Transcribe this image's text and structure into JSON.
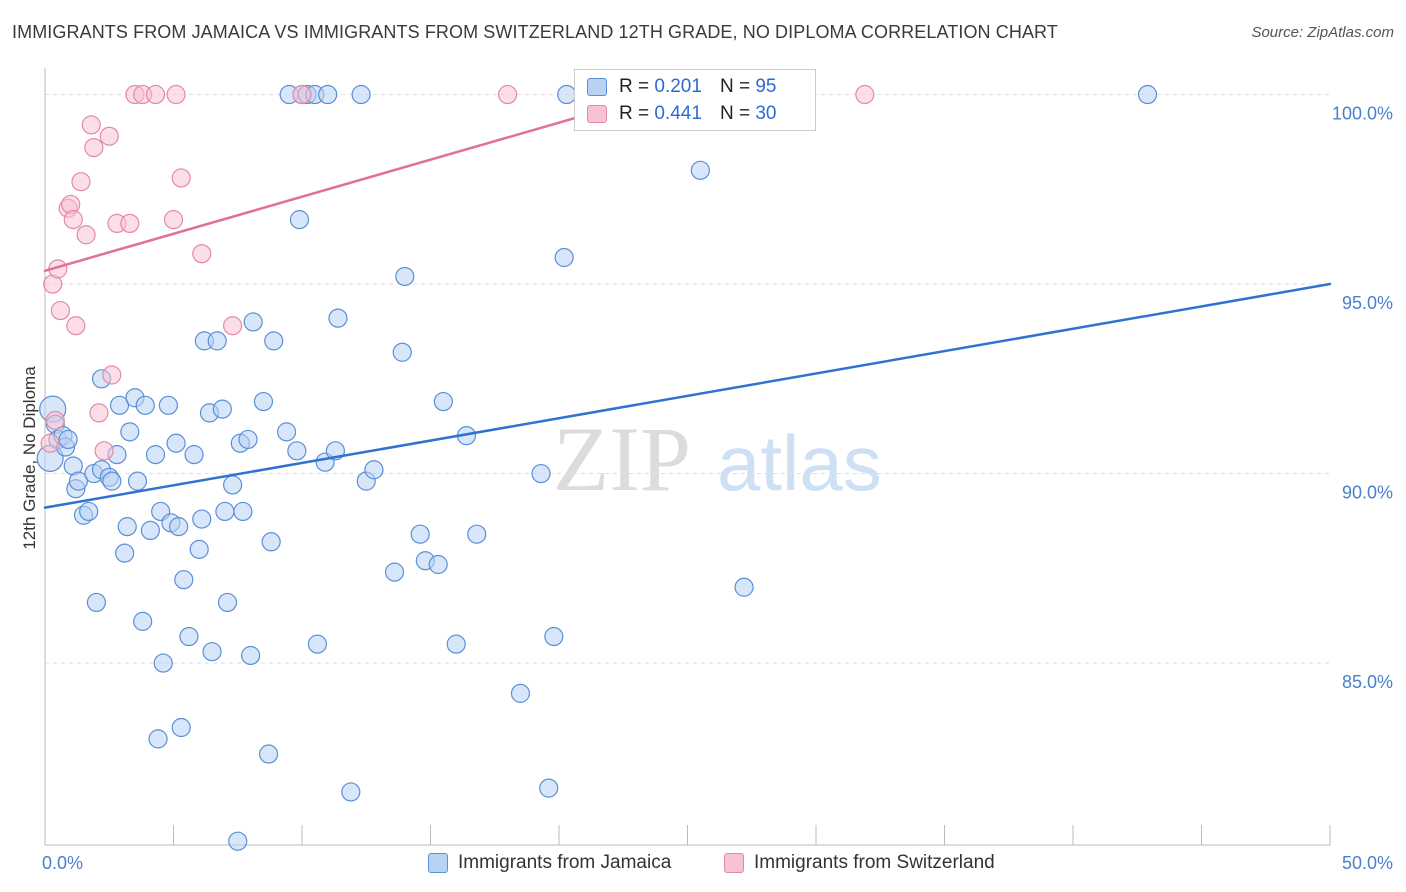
{
  "chart_data": {
    "type": "scatter",
    "title": "IMMIGRANTS FROM JAMAICA VS IMMIGRANTS FROM SWITZERLAND 12TH GRADE, NO DIPLOMA CORRELATION CHART",
    "source": "Source: ZipAtlas.com",
    "xlabel": "",
    "ylabel": "12th Grade, No Diploma",
    "xlim": [
      0,
      50
    ],
    "ylim": [
      80.2,
      100.7
    ],
    "x_tick_labels": [
      "0.0%",
      "50.0%"
    ],
    "y_ticks": [
      {
        "value": 100,
        "label": "100.0%"
      },
      {
        "value": 95,
        "label": "95.0%"
      },
      {
        "value": 90,
        "label": "90.0%"
      },
      {
        "value": 85,
        "label": "85.0%"
      }
    ],
    "watermark": {
      "part1": "ZIP",
      "part2": "atlas"
    },
    "legend": [
      {
        "r_label": "R =",
        "r_value": "0.201",
        "n_label": "N =",
        "n_value": "95"
      },
      {
        "r_label": "R =",
        "r_value": "0.441",
        "n_label": "N =",
        "n_value": "30"
      }
    ],
    "series": [
      {
        "name": "Immigrants from Jamaica",
        "fill": "#b8d2f4",
        "stroke": "#5b8fd6",
        "line_color": "#2f72d0",
        "trend": {
          "x0": 0,
          "y0": 89.1,
          "x1": 50,
          "y1": 95.0
        },
        "points": [
          [
            0.2,
            90.4
          ],
          [
            0.3,
            91.7
          ],
          [
            0.4,
            91.3
          ],
          [
            0.5,
            90.9
          ],
          [
            0.7,
            91.0
          ],
          [
            0.8,
            90.7
          ],
          [
            0.9,
            90.9
          ],
          [
            1.1,
            90.2
          ],
          [
            1.2,
            89.6
          ],
          [
            1.3,
            89.8
          ],
          [
            1.5,
            88.9
          ],
          [
            1.7,
            89.0
          ],
          [
            1.9,
            90.0
          ],
          [
            2.0,
            86.6
          ],
          [
            2.2,
            90.1
          ],
          [
            2.2,
            92.5
          ],
          [
            2.5,
            89.9
          ],
          [
            2.6,
            89.8
          ],
          [
            2.8,
            90.5
          ],
          [
            2.9,
            91.8
          ],
          [
            3.1,
            87.9
          ],
          [
            3.2,
            88.6
          ],
          [
            3.3,
            91.1
          ],
          [
            3.5,
            92.0
          ],
          [
            3.6,
            89.8
          ],
          [
            3.8,
            86.1
          ],
          [
            3.9,
            91.8
          ],
          [
            4.1,
            88.5
          ],
          [
            4.3,
            90.5
          ],
          [
            4.4,
            83.0
          ],
          [
            4.5,
            89.0
          ],
          [
            4.6,
            85.0
          ],
          [
            4.8,
            91.8
          ],
          [
            4.9,
            88.7
          ],
          [
            5.1,
            90.8
          ],
          [
            5.2,
            88.6
          ],
          [
            5.4,
            87.2
          ],
          [
            5.3,
            83.3
          ],
          [
            5.6,
            85.7
          ],
          [
            5.8,
            90.5
          ],
          [
            6.0,
            88.0
          ],
          [
            6.1,
            88.8
          ],
          [
            6.2,
            93.5
          ],
          [
            6.4,
            91.6
          ],
          [
            6.5,
            85.3
          ],
          [
            6.7,
            93.5
          ],
          [
            6.9,
            91.7
          ],
          [
            7.0,
            89.0
          ],
          [
            7.1,
            86.6
          ],
          [
            7.3,
            89.7
          ],
          [
            7.5,
            80.3
          ],
          [
            7.6,
            90.8
          ],
          [
            7.7,
            89.0
          ],
          [
            7.9,
            90.9
          ],
          [
            8.0,
            85.2
          ],
          [
            8.1,
            94.0
          ],
          [
            8.5,
            91.9
          ],
          [
            8.7,
            82.6
          ],
          [
            8.8,
            88.2
          ],
          [
            8.9,
            93.5
          ],
          [
            9.4,
            91.1
          ],
          [
            9.5,
            100.0
          ],
          [
            9.8,
            90.6
          ],
          [
            9.9,
            96.7
          ],
          [
            10.0,
            100.0
          ],
          [
            10.2,
            100.0
          ],
          [
            10.5,
            100.0
          ],
          [
            10.6,
            85.5
          ],
          [
            10.9,
            90.3
          ],
          [
            11.0,
            100.0
          ],
          [
            11.3,
            90.6
          ],
          [
            11.4,
            94.1
          ],
          [
            11.9,
            81.6
          ],
          [
            12.3,
            100.0
          ],
          [
            12.5,
            89.8
          ],
          [
            12.8,
            90.1
          ],
          [
            13.6,
            87.4
          ],
          [
            13.9,
            93.2
          ],
          [
            14.0,
            95.2
          ],
          [
            14.6,
            88.4
          ],
          [
            14.8,
            87.7
          ],
          [
            15.3,
            87.6
          ],
          [
            15.5,
            91.9
          ],
          [
            16.0,
            85.5
          ],
          [
            16.4,
            91.0
          ],
          [
            16.8,
            88.4
          ],
          [
            18.5,
            84.2
          ],
          [
            19.3,
            90.0
          ],
          [
            19.6,
            81.7
          ],
          [
            19.8,
            85.7
          ],
          [
            20.2,
            95.7
          ],
          [
            20.3,
            100.0
          ],
          [
            25.5,
            98.0
          ],
          [
            27.2,
            87.0
          ],
          [
            42.9,
            100.0
          ]
        ]
      },
      {
        "name": "Immigrants from Switzerland",
        "fill": "#f7c3d3",
        "stroke": "#e48aa6",
        "line_color": "#e07099",
        "trend": {
          "x0": 0,
          "y0": 95.35,
          "x1": 23.8,
          "y1": 100.0
        },
        "points": [
          [
            0.2,
            90.8
          ],
          [
            0.3,
            95.0
          ],
          [
            0.4,
            91.4
          ],
          [
            0.5,
            95.4
          ],
          [
            0.6,
            94.3
          ],
          [
            0.9,
            97.0
          ],
          [
            1.0,
            97.1
          ],
          [
            1.1,
            96.7
          ],
          [
            1.2,
            93.9
          ],
          [
            1.4,
            97.7
          ],
          [
            1.6,
            96.3
          ],
          [
            1.8,
            99.2
          ],
          [
            1.9,
            98.6
          ],
          [
            2.1,
            91.6
          ],
          [
            2.3,
            90.6
          ],
          [
            2.5,
            98.9
          ],
          [
            2.6,
            92.6
          ],
          [
            2.8,
            96.6
          ],
          [
            3.3,
            96.6
          ],
          [
            3.5,
            100.0
          ],
          [
            3.8,
            100.0
          ],
          [
            4.3,
            100.0
          ],
          [
            5.0,
            96.7
          ],
          [
            5.1,
            100.0
          ],
          [
            5.3,
            97.8
          ],
          [
            6.1,
            95.8
          ],
          [
            7.3,
            93.9
          ],
          [
            10.0,
            100.0
          ],
          [
            18.0,
            100.0
          ],
          [
            31.9,
            100.0
          ]
        ]
      }
    ]
  }
}
